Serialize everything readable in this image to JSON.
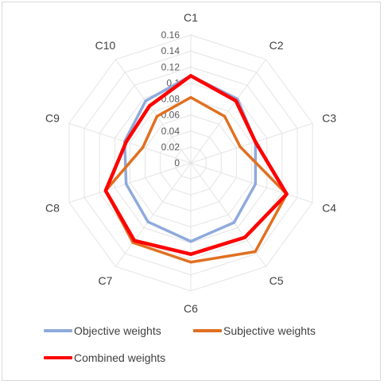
{
  "chart_data": {
    "type": "radar",
    "categories": [
      "C1",
      "C2",
      "C3",
      "C4",
      "C5",
      "C6",
      "C7",
      "C8",
      "C9",
      "C10"
    ],
    "rmax": 0.16,
    "ticks": [
      "0",
      "0.02",
      "0.04",
      "0.06",
      "0.08",
      "0.1",
      "0.12",
      "0.14",
      "0.16"
    ],
    "series": [
      {
        "name": "Objective weights",
        "color": "#8faadc",
        "values": [
          0.109,
          0.099,
          0.085,
          0.085,
          0.092,
          0.098,
          0.091,
          0.085,
          0.087,
          0.096
        ]
      },
      {
        "name": "Subjective weights",
        "color": "#e07020",
        "values": [
          0.082,
          0.072,
          0.065,
          0.126,
          0.137,
          0.124,
          0.123,
          0.112,
          0.063,
          0.072
        ]
      },
      {
        "name": "Combined weights",
        "color": "#ff0000",
        "values": [
          0.109,
          0.096,
          0.085,
          0.126,
          0.115,
          0.114,
          0.12,
          0.112,
          0.085,
          0.088
        ]
      }
    ]
  }
}
